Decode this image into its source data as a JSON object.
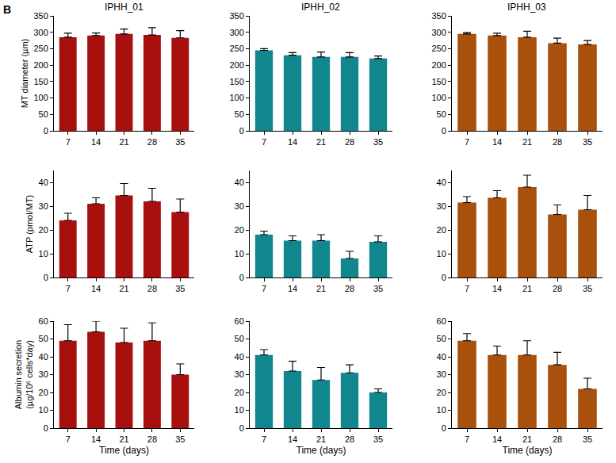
{
  "panel_label": "B",
  "chart_data": [
    {
      "type": "bar",
      "title": "IPHH_01",
      "ylabel": "MT diameter (µm)",
      "categories": [
        "7",
        "14",
        "21",
        "28",
        "35"
      ],
      "values": [
        285,
        290,
        295,
        292,
        283
      ],
      "errors": [
        12,
        8,
        15,
        22,
        22
      ],
      "color": "#a81010",
      "ylim": [
        0,
        350
      ],
      "yticks": [
        0,
        50,
        100,
        150,
        200,
        250,
        300,
        350
      ],
      "grid": false
    },
    {
      "type": "bar",
      "title": "IPHH_02",
      "categories": [
        "7",
        "14",
        "21",
        "28",
        "35"
      ],
      "values": [
        245,
        230,
        225,
        225,
        220
      ],
      "errors": [
        5,
        8,
        15,
        13,
        8
      ],
      "color": "#11868f",
      "ylim": [
        0,
        350
      ],
      "yticks": [
        0,
        50,
        100,
        150,
        200,
        250,
        300,
        350
      ],
      "grid": false
    },
    {
      "type": "bar",
      "title": "IPHH_03",
      "categories": [
        "7",
        "14",
        "21",
        "28",
        "35"
      ],
      "values": [
        295,
        290,
        285,
        267,
        263
      ],
      "errors": [
        4,
        7,
        18,
        15,
        12
      ],
      "color": "#a8500c",
      "ylim": [
        0,
        350
      ],
      "yticks": [
        0,
        50,
        100,
        150,
        200,
        250,
        300,
        350
      ],
      "grid": false
    },
    {
      "type": "bar",
      "ylabel": "ATP (pmol/MT)",
      "categories": [
        "7",
        "14",
        "21",
        "28",
        "35"
      ],
      "values": [
        24,
        31,
        34.5,
        32,
        27.5
      ],
      "errors": [
        3,
        2.5,
        5,
        5.5,
        5.5
      ],
      "color": "#a81010",
      "ylim": [
        0,
        45
      ],
      "yticks": [
        0,
        10,
        20,
        30,
        40
      ],
      "grid": false
    },
    {
      "type": "bar",
      "categories": [
        "7",
        "14",
        "21",
        "28",
        "35"
      ],
      "values": [
        18,
        15.5,
        15.5,
        8,
        15
      ],
      "errors": [
        1.5,
        2,
        2.5,
        3,
        2.5
      ],
      "color": "#11868f",
      "ylim": [
        0,
        45
      ],
      "yticks": [
        0,
        10,
        20,
        30,
        40
      ],
      "grid": false
    },
    {
      "type": "bar",
      "categories": [
        "7",
        "14",
        "21",
        "28",
        "35"
      ],
      "values": [
        31.5,
        33.5,
        38,
        26.5,
        28.5
      ],
      "errors": [
        2.5,
        3,
        5,
        4,
        6
      ],
      "color": "#a8500c",
      "ylim": [
        0,
        45
      ],
      "yticks": [
        0,
        10,
        20,
        30,
        40
      ],
      "grid": false
    },
    {
      "type": "bar",
      "ylabel": "Albumin secretion\n(µg/10⁶ cells*day)",
      "xlabel": "Time (days)",
      "categories": [
        "7",
        "14",
        "21",
        "28",
        "35"
      ],
      "values": [
        49,
        54,
        48,
        49,
        30
      ],
      "errors": [
        9,
        6,
        8,
        10,
        6
      ],
      "color": "#a81010",
      "ylim": [
        0,
        60
      ],
      "yticks": [
        0,
        10,
        20,
        30,
        40,
        50,
        60
      ],
      "grid": false
    },
    {
      "type": "bar",
      "xlabel": "Time (days)",
      "categories": [
        "7",
        "14",
        "21",
        "28",
        "35"
      ],
      "values": [
        41,
        32,
        27,
        31,
        20
      ],
      "errors": [
        3,
        5.5,
        7,
        4.5,
        2
      ],
      "color": "#11868f",
      "ylim": [
        0,
        60
      ],
      "yticks": [
        0,
        10,
        20,
        30,
        40,
        50,
        60
      ],
      "grid": false
    },
    {
      "type": "bar",
      "xlabel": "Time (days)",
      "categories": [
        "7",
        "14",
        "21",
        "28",
        "35"
      ],
      "values": [
        49,
        41,
        41,
        35.5,
        22
      ],
      "errors": [
        4,
        5,
        8,
        7,
        6
      ],
      "color": "#a8500c",
      "ylim": [
        0,
        60
      ],
      "yticks": [
        0,
        10,
        20,
        30,
        40,
        50,
        60
      ],
      "grid": false
    }
  ]
}
